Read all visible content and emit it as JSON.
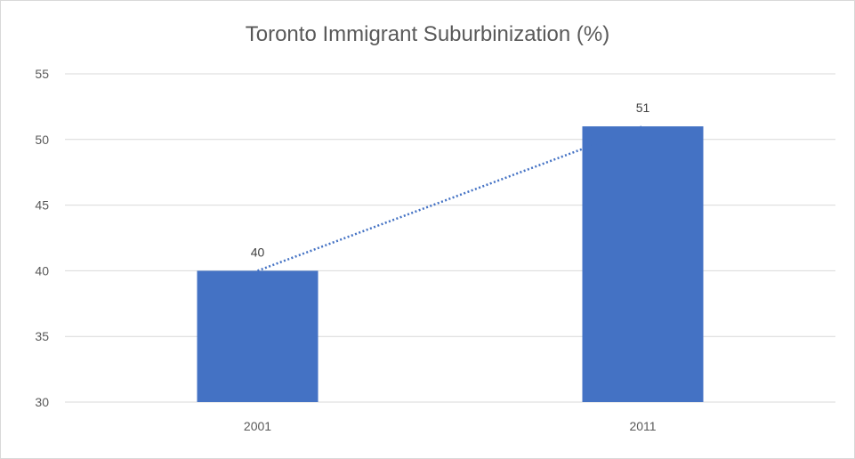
{
  "chart_data": {
    "type": "bar",
    "title": "Toronto Immigrant Suburbinization (%)",
    "categories": [
      "2001",
      "2011"
    ],
    "values": [
      40,
      51
    ],
    "data_labels": [
      "40",
      "51"
    ],
    "xlabel": "",
    "ylabel": "",
    "ylim": [
      30,
      55
    ],
    "yticks": [
      "30",
      "35",
      "40",
      "45",
      "50",
      "55"
    ],
    "grid": true,
    "legend": "none",
    "trendline": "linear, dotted",
    "colors": {
      "bar": "#4472C4",
      "trendline": "#4472C4",
      "grid": "#d9d9d9",
      "text": "#595959"
    }
  }
}
